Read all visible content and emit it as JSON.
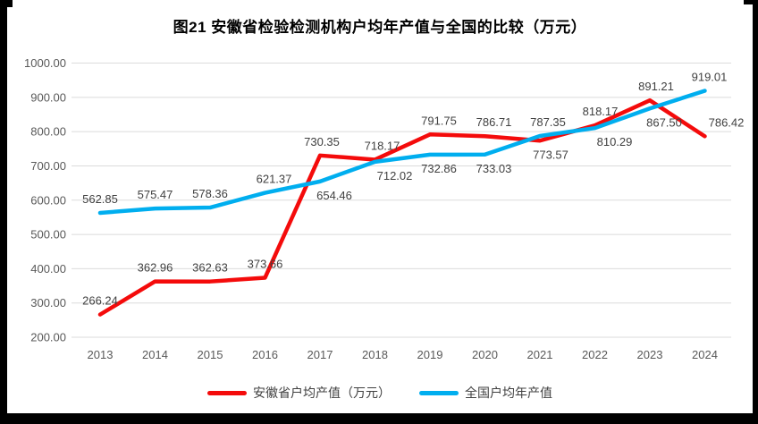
{
  "frame": {
    "border_color": "#000000",
    "background": "#ffffff"
  },
  "chart_data": {
    "type": "line",
    "title": "图21 安徽省检验检测机构户均年产值与全国的比较（万元）",
    "categories": [
      "2013",
      "2014",
      "2015",
      "2016",
      "2017",
      "2018",
      "2019",
      "2020",
      "2021",
      "2022",
      "2023",
      "2024"
    ],
    "series": [
      {
        "name": "安徽省户均产值（万元）",
        "color": "#F40B0B",
        "values": [
          266.24,
          362.96,
          362.63,
          373.66,
          730.35,
          718.17,
          791.75,
          786.71,
          773.57,
          818.17,
          891.21,
          786.42
        ],
        "label_side": [
          "above",
          "above",
          "above",
          "above",
          "above",
          "above",
          "above",
          "above",
          "below",
          "above",
          "above",
          "above"
        ],
        "label_dx": [
          0,
          0,
          0,
          0,
          2,
          8,
          10,
          10,
          12,
          6,
          7,
          24
        ]
      },
      {
        "name": "全国户均年产值",
        "color": "#00AEEF",
        "values": [
          562.85,
          575.47,
          578.36,
          621.37,
          654.46,
          712.02,
          732.86,
          733.03,
          787.35,
          810.29,
          867.5,
          919.01
        ],
        "label_side": [
          "above",
          "above",
          "above",
          "above",
          "below",
          "below",
          "below",
          "below",
          "above",
          "below",
          "below",
          "above"
        ],
        "label_dx": [
          0,
          0,
          0,
          10,
          16,
          22,
          10,
          10,
          9,
          22,
          16,
          5
        ]
      }
    ],
    "ylim": [
      200,
      1000
    ],
    "ytick_step": 100,
    "ytick_labels": [
      "200.00",
      "300.00",
      "400.00",
      "500.00",
      "600.00",
      "700.00",
      "800.00",
      "900.00",
      "1000.00"
    ],
    "grid": "horizontal",
    "legend_position": "bottom",
    "gridline_color": "#DBDBDB",
    "axis_label_color": "#595959",
    "data_label_color": "#404040"
  }
}
